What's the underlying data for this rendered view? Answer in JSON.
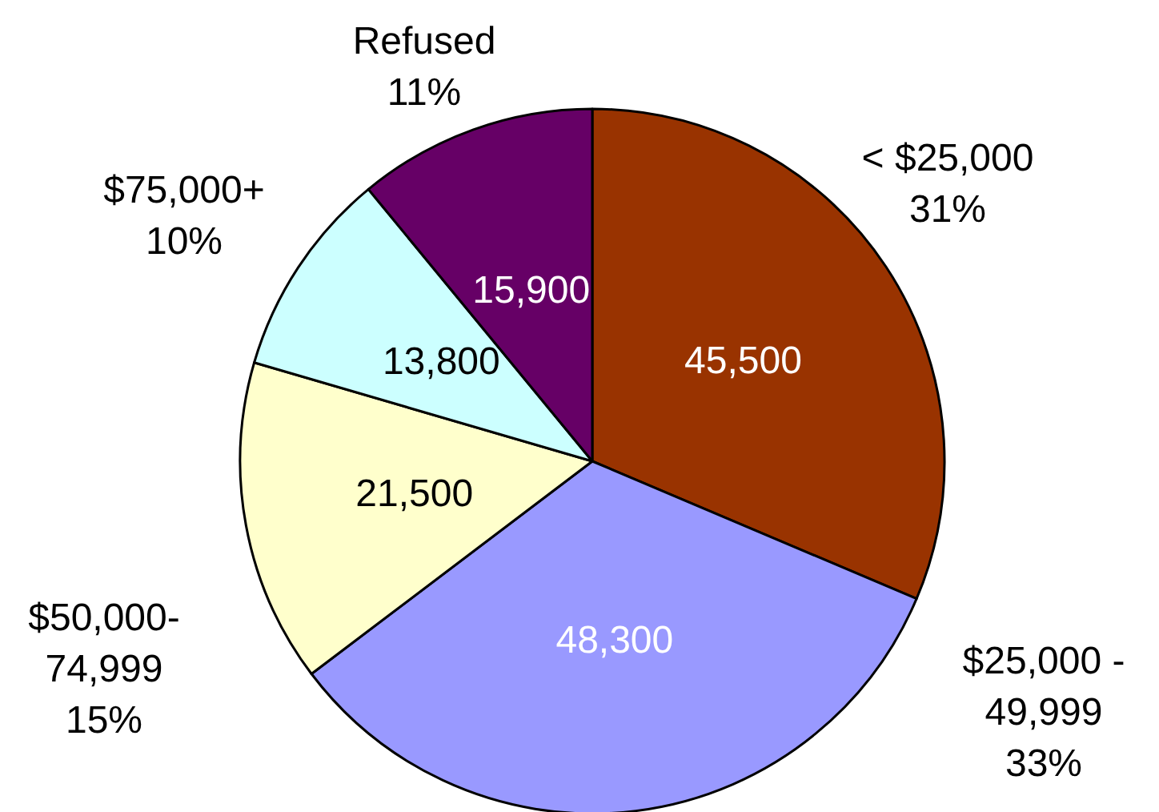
{
  "chart_data": {
    "type": "pie",
    "categories": [
      "< $25,000",
      "$25,000 -\n49,999",
      "$50,000-\n74,999",
      "$75,000+",
      "Refused"
    ],
    "values": [
      45500,
      48300,
      21500,
      13800,
      15900
    ],
    "colors": [
      "#993300",
      "#9999ff",
      "#ffffcc",
      "#ccffff",
      "#660066"
    ],
    "annotations": [
      "31%",
      "33%",
      "15%",
      "10%",
      "11%"
    ],
    "value_labels": [
      "45,500",
      "48,300",
      "21,500",
      "13,800",
      "15,900"
    ],
    "legend": false
  }
}
